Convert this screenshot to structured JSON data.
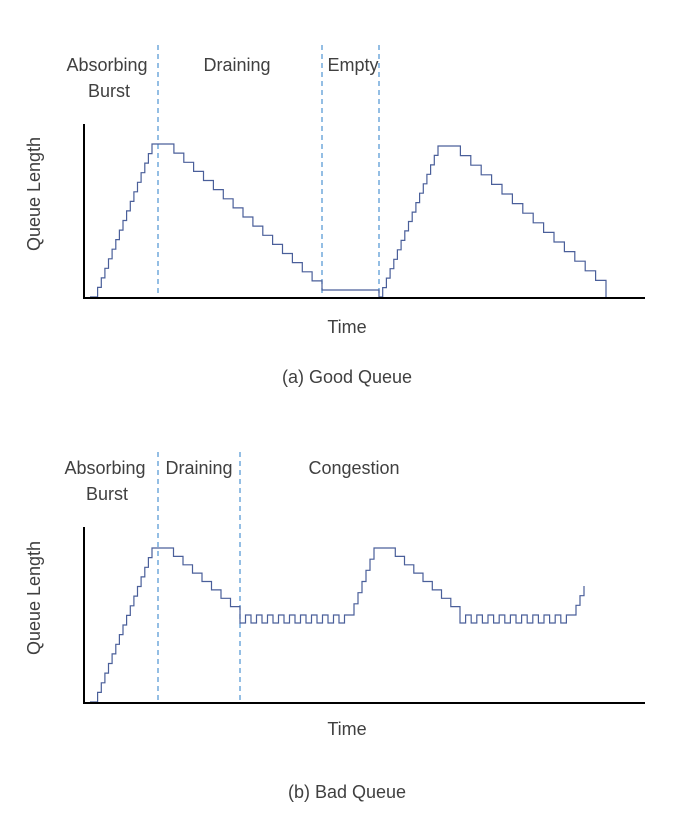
{
  "panel_a": {
    "phases": [
      "Absorbing",
      "Burst",
      "Draining",
      "Empty"
    ],
    "xlabel": "Time",
    "ylabel": "Queue Length",
    "caption": "(a) Good Queue",
    "colors": {
      "trace": "#4a5f9a",
      "divider": "#5b9bd5",
      "axis": "#000000"
    }
  },
  "panel_b": {
    "phases": [
      "Absorbing",
      "Burst",
      "Draining",
      "Congestion"
    ],
    "xlabel": "Time",
    "ylabel": "Queue Length",
    "caption": "(b) Bad Queue",
    "colors": {
      "trace": "#4a5f9a",
      "divider": "#5b9bd5",
      "axis": "#000000"
    }
  }
}
